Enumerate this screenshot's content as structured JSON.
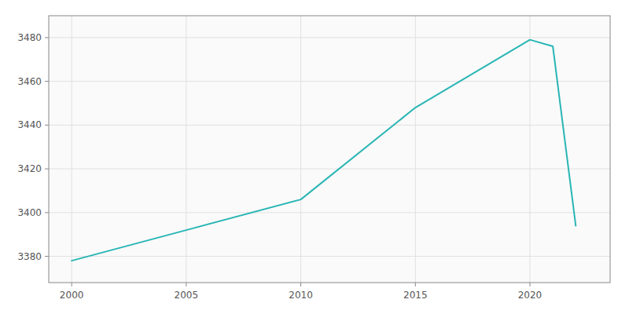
{
  "chart_data": {
    "type": "line",
    "x": [
      2000,
      2005,
      2010,
      2015,
      2020,
      2021,
      2022
    ],
    "values": [
      3378,
      3392,
      3406,
      3448,
      3479,
      3476,
      3394
    ],
    "color": "#2ab5b5",
    "xlim": [
      1999,
      2023.5
    ],
    "ylim": [
      3368,
      3490
    ],
    "xticks": [
      2000,
      2005,
      2010,
      2015,
      2020
    ],
    "yticks": [
      3380,
      3400,
      3420,
      3440,
      3460,
      3480
    ],
    "grid": true
  }
}
